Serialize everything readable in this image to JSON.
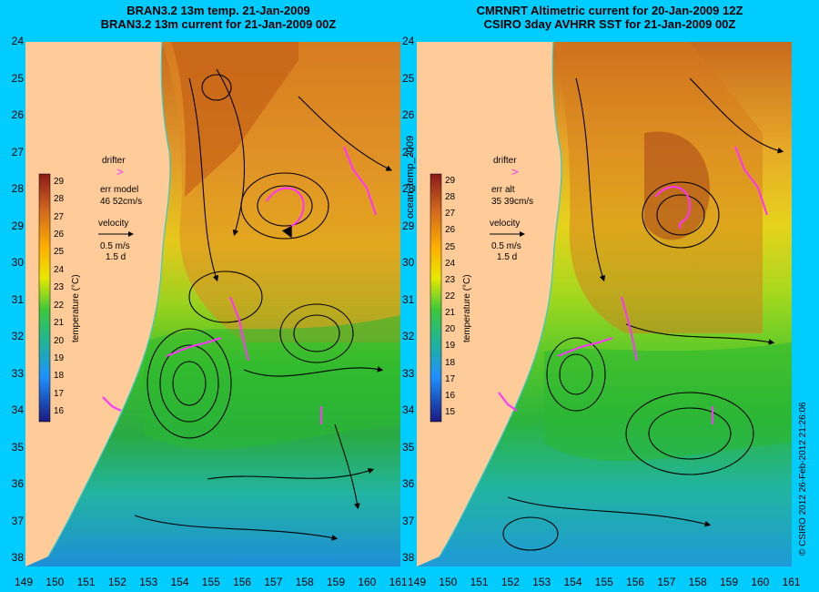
{
  "left_panel": {
    "title_line1": "BRAN3.2 13m temp. 21-Jan-2009",
    "title_line2": "BRAN3.2 13m current for 21-Jan-2009 00Z",
    "drifter_label": "drifter",
    "err_label": "err model",
    "err_value": "46 52cm/s",
    "velocity_label": "velocity",
    "velocity_scale": "0.5 m/s",
    "velocity_duration": "1.5 d",
    "colorbar_title": "temperature (°C)",
    "colorbar_ticks": [
      "29",
      "28",
      "27",
      "26",
      "25",
      "24",
      "23",
      "22",
      "21",
      "20",
      "19",
      "18",
      "17",
      "16"
    ]
  },
  "right_panel": {
    "title_line1": "CMRNRT Altimetric current for 20-Jan-2009 12Z",
    "title_line2": "CSIRO 3day AVHRR SST for 21-Jan-2009 00Z",
    "drifter_label": "drifter",
    "err_label": "err alt",
    "err_value": "35 39cm/s",
    "velocity_label": "velocity",
    "velocity_scale": "0.5 m/s",
    "velocity_duration": "1.5 d",
    "colorbar_title": "temperature (°C)",
    "colorbar_ticks": [
      "29",
      "28",
      "27",
      "26",
      "25",
      "24",
      "23",
      "22",
      "21",
      "20",
      "19",
      "18",
      "17",
      "16",
      "15"
    ]
  },
  "center_label": "ocean_temp_2009",
  "credit": "© CSIRO 2012   26-Feb-2012 21:26:06",
  "lat_labels": [
    "24",
    "25",
    "26",
    "27",
    "28",
    "29",
    "30",
    "31",
    "32",
    "33",
    "34",
    "35",
    "36",
    "37",
    "38"
  ],
  "lon_labels": [
    "149",
    "150",
    "151",
    "152",
    "153",
    "154",
    "155",
    "156",
    "157",
    "158",
    "159",
    "160",
    "161"
  ],
  "colors": {
    "background": "#00ccff",
    "land": "#ffcc99",
    "drifter": "#ff33ff",
    "coast_line": "#33cccc"
  }
}
